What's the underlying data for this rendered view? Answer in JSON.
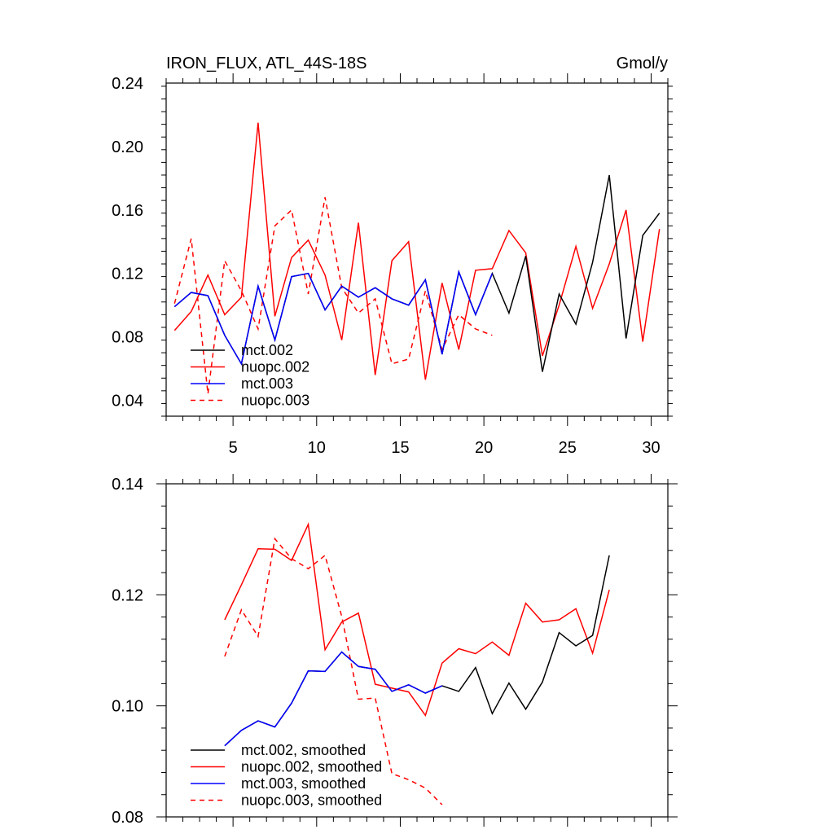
{
  "chart_data": [
    {
      "type": "line",
      "title": "IRON_FLUX, ATL_44S-18S",
      "units_label": "Gmol/y",
      "xlabel": "",
      "ylabel": "",
      "xlim": [
        1,
        31
      ],
      "ylim": [
        0.03,
        0.24
      ],
      "x_ticks": [
        5,
        10,
        15,
        20,
        25,
        30
      ],
      "x_tick_labels": [
        "5",
        "10",
        "15",
        "20",
        "25",
        "30"
      ],
      "y_ticks": [
        0.04,
        0.08,
        0.12,
        0.16,
        0.2,
        0.24
      ],
      "y_tick_labels": [
        "0.04",
        "0.08",
        "0.12",
        "0.16",
        "0.20",
        "0.24"
      ],
      "series": [
        {
          "name": "mct.002",
          "color": "#000000",
          "dash": false,
          "x": [
            1.5,
            2.5,
            3.5,
            4.5,
            5.5,
            6.5,
            7.5,
            8.5,
            9.5,
            10.5,
            11.5,
            12.5,
            13.5,
            14.5,
            15.5,
            16.5,
            17.5,
            18.5,
            19.5,
            20.5,
            21.5,
            22.5,
            23.5,
            24.5,
            25.5,
            26.5,
            27.5,
            28.5,
            29.5,
            30.5
          ],
          "values": [
            0.099,
            0.108,
            0.106,
            0.081,
            0.063,
            0.112,
            0.078,
            0.118,
            0.12,
            0.097,
            0.112,
            0.105,
            0.111,
            0.104,
            0.1,
            0.116,
            0.069,
            0.121,
            0.094,
            0.12,
            0.095,
            0.131,
            0.058,
            0.107,
            0.088,
            0.127,
            0.182,
            0.079,
            0.144,
            0.158
          ]
        },
        {
          "name": "nuopc.002",
          "color": "#ff0000",
          "dash": false,
          "x": [
            1.5,
            2.5,
            3.5,
            4.5,
            5.5,
            6.5,
            7.5,
            8.5,
            9.5,
            10.5,
            11.5,
            12.5,
            13.5,
            14.5,
            15.5,
            16.5,
            17.5,
            18.5,
            19.5,
            20.5,
            21.5,
            22.5,
            23.5,
            24.5,
            25.5,
            26.5,
            27.5,
            28.5,
            29.5,
            30.5
          ],
          "values": [
            0.084,
            0.096,
            0.119,
            0.094,
            0.105,
            0.215,
            0.093,
            0.13,
            0.141,
            0.119,
            0.078,
            0.152,
            0.056,
            0.128,
            0.14,
            0.053,
            0.114,
            0.072,
            0.122,
            0.123,
            0.147,
            0.133,
            0.068,
            0.1,
            0.137,
            0.098,
            0.126,
            0.16,
            0.077,
            0.148
          ]
        },
        {
          "name": "mct.003",
          "color": "#0000ff",
          "dash": false,
          "x": [
            1.5,
            2.5,
            3.5,
            4.5,
            5.5,
            6.5,
            7.5,
            8.5,
            9.5,
            10.5,
            11.5,
            12.5,
            13.5,
            14.5,
            15.5,
            16.5,
            17.5,
            18.5,
            19.5,
            20.5
          ],
          "values": [
            0.099,
            0.108,
            0.106,
            0.081,
            0.063,
            0.112,
            0.078,
            0.118,
            0.12,
            0.097,
            0.112,
            0.105,
            0.111,
            0.104,
            0.1,
            0.116,
            0.069,
            0.121,
            0.094,
            0.12
          ]
        },
        {
          "name": "nuopc.003",
          "color": "#ff0000",
          "dash": true,
          "x": [
            1.5,
            2.5,
            3.5,
            4.5,
            5.5,
            6.5,
            7.5,
            8.5,
            9.5,
            10.5,
            11.5,
            12.5,
            13.5,
            14.5,
            15.5,
            16.5,
            17.5,
            18.5,
            19.5,
            20.5
          ],
          "values": [
            0.101,
            0.142,
            0.044,
            0.128,
            0.109,
            0.085,
            0.15,
            0.16,
            0.107,
            0.168,
            0.111,
            0.095,
            0.104,
            0.063,
            0.066,
            0.109,
            0.072,
            0.094,
            0.085,
            0.081
          ]
        }
      ]
    },
    {
      "type": "line",
      "title": "",
      "xlabel": "",
      "ylabel": "",
      "xlim": [
        1,
        31
      ],
      "ylim": [
        0.08,
        0.14
      ],
      "x_ticks": [
        5,
        10,
        15,
        20,
        25,
        30
      ],
      "x_tick_labels": [],
      "y_ticks": [
        0.08,
        0.1,
        0.12,
        0.14
      ],
      "y_tick_labels": [
        "0.08",
        "0.10",
        "0.12",
        "0.14"
      ],
      "series": [
        {
          "name": "mct.002, smoothed",
          "color": "#000000",
          "dash": false,
          "x": [
            4.5,
            5.5,
            6.5,
            7.5,
            8.5,
            9.5,
            10.5,
            11.5,
            12.5,
            13.5,
            14.5,
            15.5,
            16.5,
            17.5,
            18.5,
            19.5,
            20.5,
            21.5,
            22.5,
            23.5,
            24.5,
            25.5,
            26.5,
            27.5
          ],
          "values": [
            0.0928,
            0.0956,
            0.0973,
            0.0962,
            0.1005,
            0.1063,
            0.1062,
            0.1097,
            0.1071,
            0.1066,
            0.1026,
            0.1038,
            0.1023,
            0.1036,
            0.1026,
            0.1069,
            0.0986,
            0.1041,
            0.0994,
            0.1043,
            0.1132,
            0.1108,
            0.1127,
            0.1271
          ]
        },
        {
          "name": "nuopc.002, smoothed",
          "color": "#ff0000",
          "dash": false,
          "x": [
            4.5,
            5.5,
            6.5,
            7.5,
            8.5,
            9.5,
            10.5,
            11.5,
            12.5,
            13.5,
            14.5,
            15.5,
            16.5,
            17.5,
            18.5,
            19.5,
            20.5,
            21.5,
            22.5,
            23.5,
            24.5,
            25.5,
            26.5,
            27.5
          ],
          "values": [
            0.1155,
            0.1218,
            0.1283,
            0.1282,
            0.1262,
            0.1327,
            0.1101,
            0.1151,
            0.1167,
            0.1039,
            0.1032,
            0.1025,
            0.0983,
            0.1077,
            0.1103,
            0.1094,
            0.1115,
            0.1091,
            0.1185,
            0.1151,
            0.1155,
            0.1175,
            0.1095,
            0.1209
          ]
        },
        {
          "name": "mct.003, smoothed",
          "color": "#0000ff",
          "dash": false,
          "x": [
            4.5,
            5.5,
            6.5,
            7.5,
            8.5,
            9.5,
            10.5,
            11.5,
            12.5,
            13.5,
            14.5,
            15.5,
            16.5,
            17.5
          ],
          "values": [
            0.0928,
            0.0956,
            0.0973,
            0.0962,
            0.1005,
            0.1063,
            0.1062,
            0.1097,
            0.1071,
            0.1066,
            0.1026,
            0.1038,
            0.1023,
            0.1036
          ]
        },
        {
          "name": "nuopc.003, smoothed",
          "color": "#ff0000",
          "dash": true,
          "x": [
            4.5,
            5.5,
            6.5,
            7.5,
            8.5,
            9.5,
            10.5,
            11.5,
            12.5,
            13.5,
            14.5,
            15.5,
            16.5,
            17.5
          ],
          "values": [
            0.1089,
            0.1173,
            0.1125,
            0.1301,
            0.1265,
            0.1247,
            0.1271,
            0.1161,
            0.1012,
            0.1014,
            0.0878,
            0.0867,
            0.0852,
            0.0822
          ]
        }
      ]
    }
  ]
}
